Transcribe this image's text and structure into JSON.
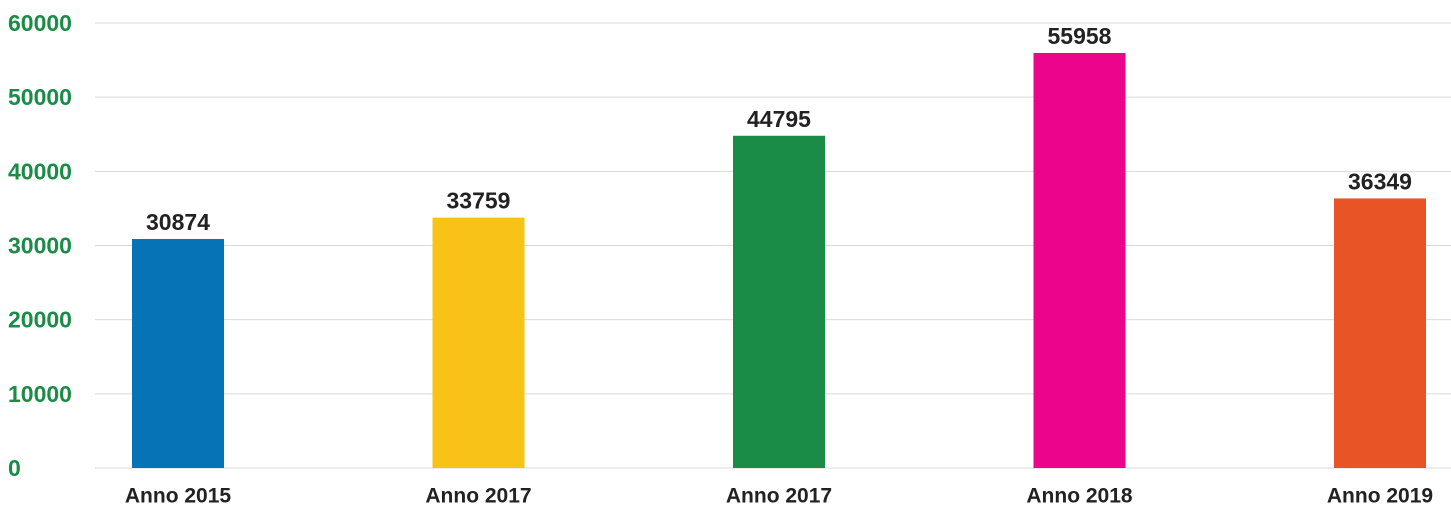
{
  "chart_data": {
    "type": "bar",
    "categories": [
      "Anno 2015",
      "Anno 2017",
      "Anno 2017",
      "Anno 2018",
      "Anno 2019"
    ],
    "values": [
      30874,
      33759,
      44795,
      55958,
      36349
    ],
    "colors": [
      "#0573b6",
      "#f8c316",
      "#1a8c48",
      "#ec058c",
      "#e95427"
    ],
    "ylim": [
      0,
      60000
    ],
    "yticks": [
      0,
      10000,
      20000,
      30000,
      40000,
      50000,
      60000
    ],
    "grid": true
  }
}
